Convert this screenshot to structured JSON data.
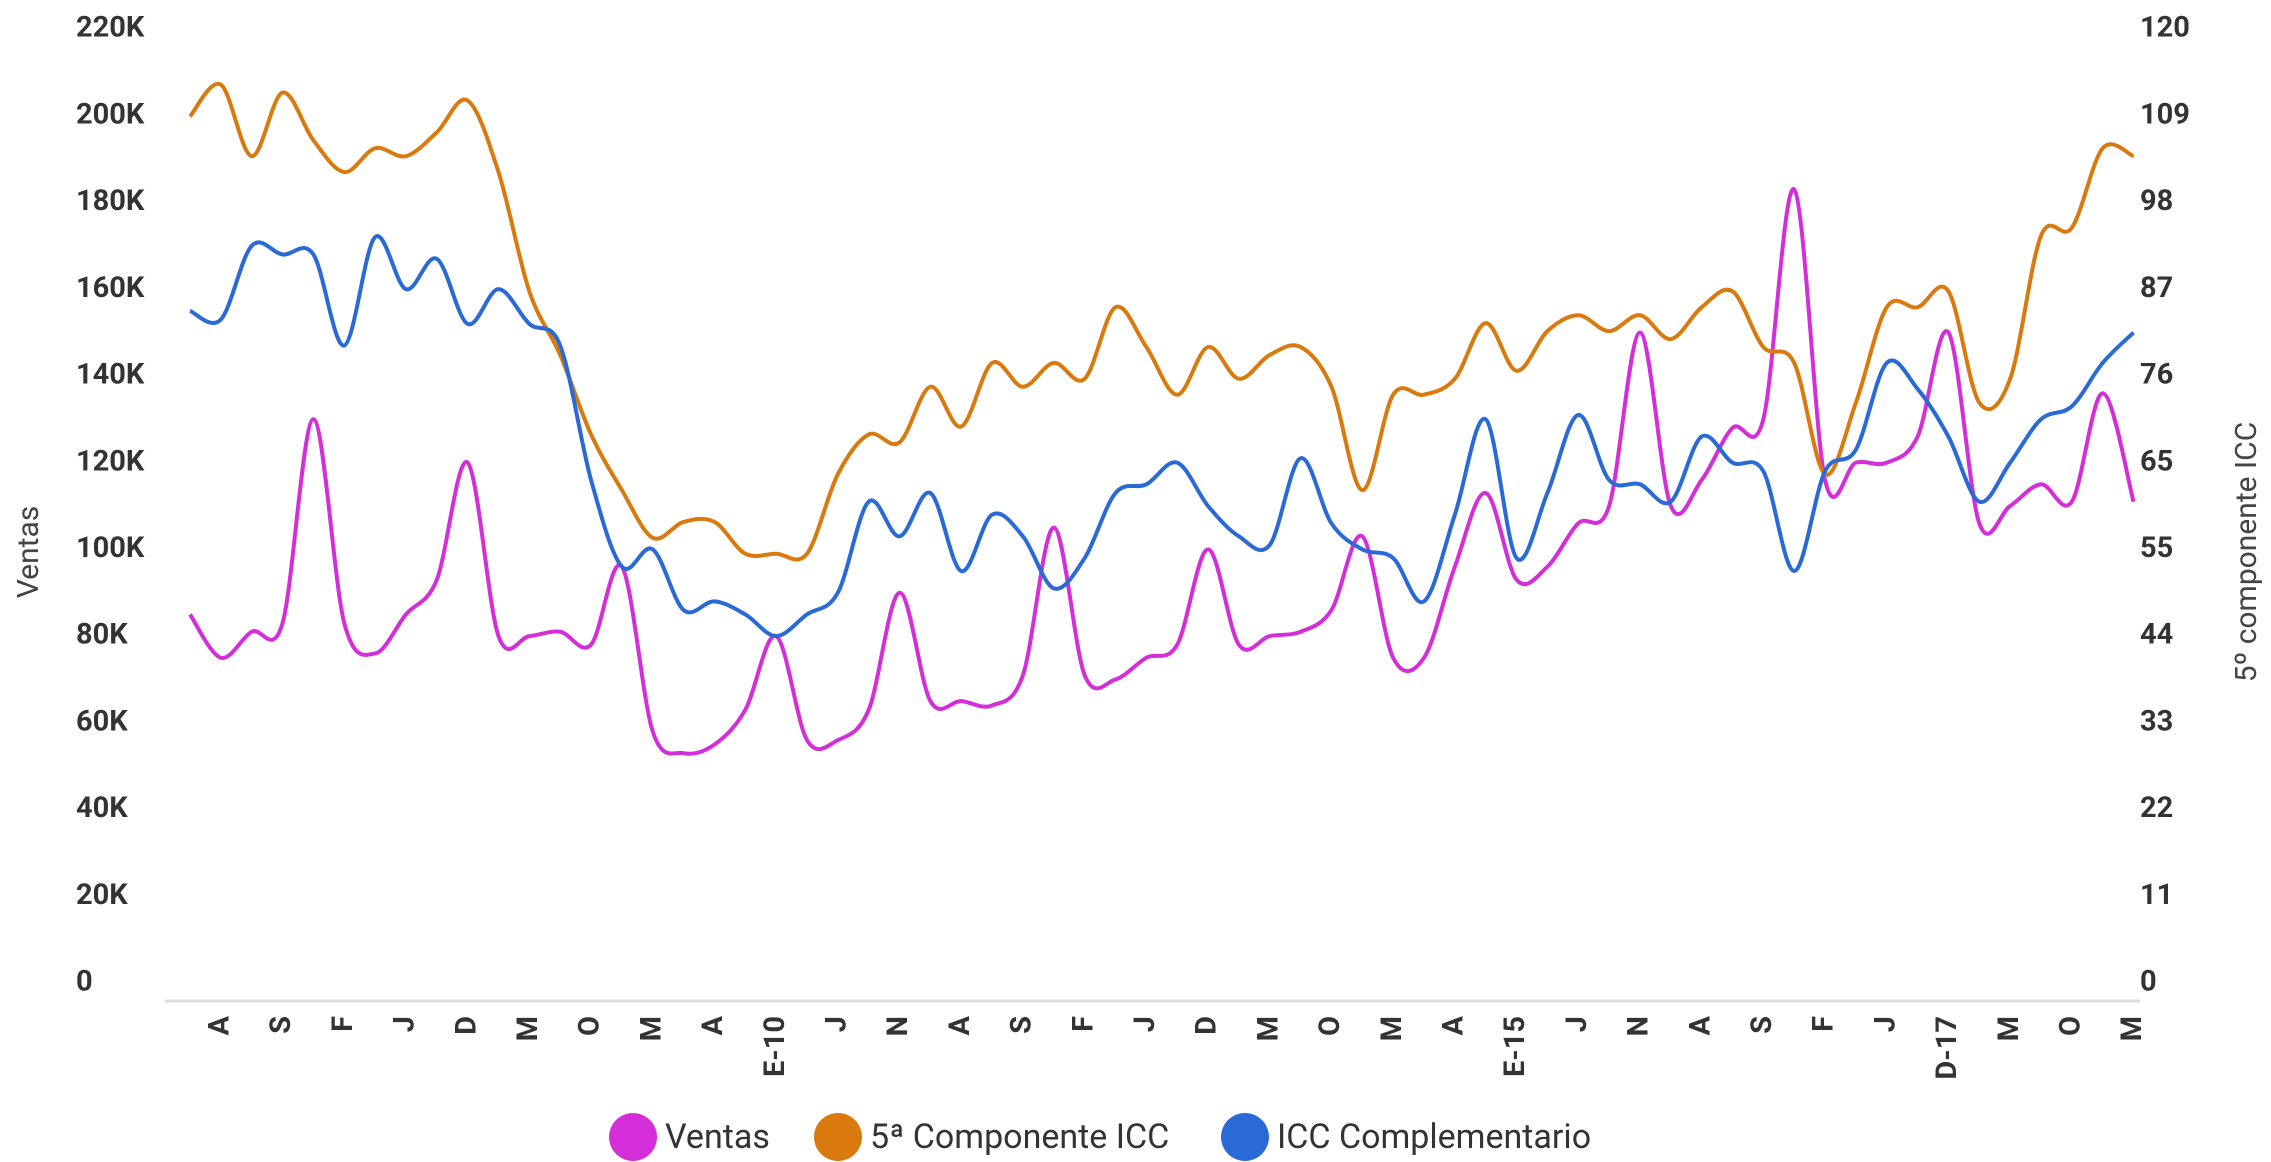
{
  "chart_data": {
    "type": "line",
    "y_label": "Ventas",
    "y2_label": "5º componente ICC",
    "categories": [
      null,
      "A",
      null,
      "S",
      null,
      "F",
      null,
      "J",
      null,
      "D",
      null,
      "M",
      null,
      "O",
      null,
      "M",
      null,
      "A",
      null,
      "E-10",
      null,
      "J",
      null,
      "N",
      null,
      "A",
      null,
      "S",
      null,
      "F",
      null,
      "J",
      null,
      "D",
      null,
      "M",
      null,
      "O",
      null,
      "M",
      null,
      "A",
      null,
      "E-15",
      null,
      "J",
      null,
      "N",
      null,
      "A",
      null,
      "S",
      null,
      "F",
      null,
      "J",
      null,
      "D-17",
      null,
      "M",
      null,
      "O",
      null,
      "M"
    ],
    "ylim": [
      0,
      220000
    ],
    "yticks": [
      0,
      {
        "value": 20000,
        "label": "20K"
      },
      {
        "value": 40000,
        "label": "40K"
      },
      {
        "value": 60000,
        "label": "60K"
      },
      {
        "value": 80000,
        "label": "80K"
      },
      {
        "value": 100000,
        "label": "100K"
      },
      {
        "value": 120000,
        "label": "120K"
      },
      {
        "value": 140000,
        "label": "140K"
      },
      {
        "value": 160000,
        "label": "160K"
      },
      {
        "value": 180000,
        "label": "180K"
      },
      {
        "value": 200000,
        "label": "200K"
      },
      {
        "value": 220000,
        "label": "220K"
      }
    ],
    "y2lim": [
      0,
      120
    ],
    "y2ticks": [
      0,
      {
        "value": 10.91,
        "label": "11"
      },
      {
        "value": 21.82,
        "label": "22"
      },
      {
        "value": 32.73,
        "label": "33"
      },
      {
        "value": 43.64,
        "label": "44"
      },
      {
        "value": 54.55,
        "label": "55"
      },
      {
        "value": 65.45,
        "label": "65"
      },
      {
        "value": 76.36,
        "label": "76"
      },
      {
        "value": 87.27,
        "label": "87"
      },
      {
        "value": 98.18,
        "label": "98"
      },
      {
        "value": 109.09,
        "label": "109"
      },
      120
    ],
    "legend": "bottom",
    "series": [
      {
        "name": "Ventas",
        "color": "#d42ed8",
        "values": [
          85000,
          75000,
          81000,
          83000,
          130000,
          83000,
          76000,
          85000,
          93000,
          120000,
          80000,
          80000,
          81000,
          78000,
          96000,
          58000,
          53000,
          55000,
          63000,
          80000,
          56000,
          56000,
          63000,
          90000,
          65000,
          65000,
          64000,
          71000,
          105000,
          71000,
          70000,
          75000,
          78000,
          100000,
          78000,
          80000,
          81000,
          86000,
          103000,
          75000,
          75000,
          96000,
          113000,
          93000,
          96000,
          106000,
          110000,
          150000,
          110000,
          116000,
          128000,
          130000,
          183000,
          116000,
          120000,
          120000,
          126000,
          150000,
          106000,
          110000,
          115000,
          111000,
          136000,
          111000
        ]
      },
      {
        "name": "5ª Componente ICC",
        "color": "#d9790e",
        "axis": "y2",
        "values": [
          109,
          113,
          104,
          112,
          106,
          102,
          105,
          104,
          107,
          111,
          102,
          87,
          79,
          69,
          62,
          56,
          58,
          58,
          54,
          54,
          54,
          64,
          69,
          68,
          75,
          70,
          78,
          75,
          78,
          76,
          85,
          80,
          74,
          80,
          76,
          79,
          80,
          75,
          62,
          74,
          74,
          76,
          83,
          77,
          82,
          84,
          82,
          84,
          81,
          85,
          87,
          80,
          78,
          64,
          73,
          85,
          85,
          87,
          73,
          76,
          94,
          95,
          105,
          104
        ]
      },
      {
        "name": "ICC Complementario",
        "color": "#2a6ad6",
        "values": [
          155000,
          153000,
          170000,
          168000,
          168000,
          147000,
          172000,
          160000,
          167000,
          152000,
          160000,
          152000,
          147000,
          116000,
          96000,
          100000,
          86000,
          88000,
          85000,
          80000,
          85000,
          90000,
          111000,
          103000,
          113000,
          95000,
          108000,
          103000,
          91000,
          98000,
          113000,
          115000,
          120000,
          110000,
          103000,
          101000,
          121000,
          106000,
          100000,
          98000,
          88000,
          108000,
          130000,
          98000,
          113000,
          131000,
          116000,
          115000,
          111000,
          126000,
          120000,
          118000,
          95000,
          118000,
          123000,
          143000,
          137000,
          126000,
          111000,
          120000,
          130000,
          133000,
          143000,
          150000
        ]
      }
    ]
  }
}
